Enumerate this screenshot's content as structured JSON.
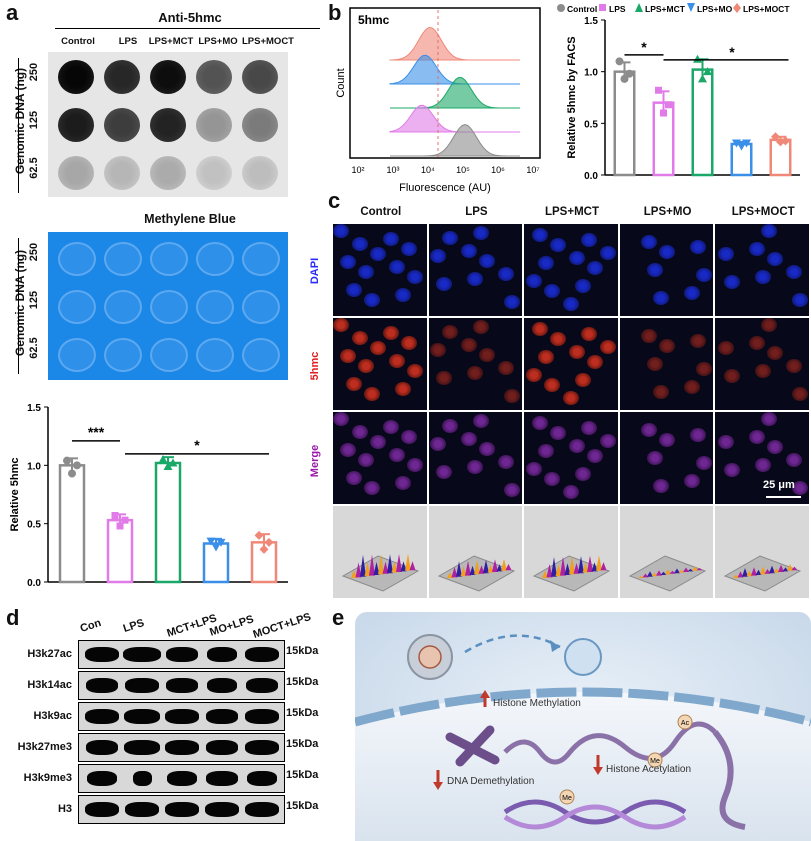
{
  "panel_labels": {
    "a": "a",
    "b": "b",
    "c": "c",
    "d": "d",
    "e": "e"
  },
  "panel_a": {
    "dot_blot_title": "Anti-5hmc",
    "columns": [
      "Control",
      "LPS",
      "LPS+MCT",
      "LPS+MO",
      "LPS+MOCT"
    ],
    "rows": [
      "250",
      "125",
      "62.5"
    ],
    "row_axis_label": "Genomic DNA (ng)",
    "stain_title": "Methylene Blue",
    "dot_intensity": [
      [
        0.95,
        0.8,
        0.92,
        0.6,
        0.65
      ],
      [
        0.85,
        0.7,
        0.82,
        0.3,
        0.42
      ],
      [
        0.22,
        0.15,
        0.2,
        0.1,
        0.12
      ]
    ]
  },
  "panel_b": {
    "histogram_title": "5hmc",
    "y_label": "Count",
    "x_label": "Fluorescence (AU)",
    "x_ticks": [
      "10²",
      "10³",
      "10⁴",
      "10⁵",
      "10⁶",
      "10⁷"
    ],
    "legend": [
      "Control",
      "LPS",
      "LPS+MCT",
      "LPS+MO",
      "LPS+MOCT"
    ]
  },
  "panel_c": {
    "columns": [
      "Control",
      "LPS",
      "LPS+MCT",
      "LPS+MO",
      "LPS+MOCT"
    ],
    "rows": [
      "DAPI",
      "5hmc",
      "Merge"
    ],
    "scale_bar": "25 μm"
  },
  "panel_d": {
    "columns": [
      "Con",
      "LPS",
      "MCT+LPS",
      "MO+LPS",
      "MOCT+LPS"
    ],
    "rows": [
      "H3k27ac",
      "H3k14ac",
      "H3k9ac",
      "H3k27me3",
      "H3k9me3",
      "H3"
    ],
    "size_label": "15kDa"
  },
  "panel_e": {
    "labels": {
      "histone_methylation": "Histone Methylation",
      "histone_acetylation": "Histone Acetylation",
      "dna_demethylation": "DNA Demethylation",
      "me": "Me",
      "ac": "Ac"
    }
  },
  "colors": {
    "Control": "#8c8c8c",
    "LPS": "#e07be8",
    "LPS+MCT": "#1aa868",
    "LPS+MO": "#3a8fe8",
    "LPS+MOCT": "#f08878"
  },
  "chart_data": [
    {
      "type": "bar",
      "panel": "a",
      "categories": [
        "Control",
        "LPS",
        "LPS+MCT",
        "LPS+MO",
        "LPS+MOCT"
      ],
      "values": [
        1.0,
        0.53,
        1.02,
        0.33,
        0.34
      ],
      "errors": [
        0.06,
        0.05,
        0.05,
        0.04,
        0.07
      ],
      "points": [
        [
          1.04,
          0.93,
          1.0
        ],
        [
          0.57,
          0.48,
          0.53
        ],
        [
          1.05,
          0.99,
          1.02
        ],
        [
          0.35,
          0.3,
          0.34
        ],
        [
          0.4,
          0.28,
          0.34
        ]
      ],
      "ylabel": "Relative 5hmc",
      "ylim": [
        0,
        1.5
      ],
      "yticks": [
        "0.0",
        "0.5",
        "1.0",
        "1.5"
      ],
      "significance": [
        "***",
        "*"
      ]
    },
    {
      "type": "bar",
      "panel": "b",
      "categories": [
        "Control",
        "LPS",
        "LPS+MCT",
        "LPS+MO",
        "LPS+MOCT"
      ],
      "values": [
        1.0,
        0.7,
        1.02,
        0.3,
        0.34
      ],
      "errors": [
        0.09,
        0.11,
        0.1,
        0.02,
        0.03
      ],
      "points": [
        [
          1.1,
          0.93,
          0.98
        ],
        [
          0.82,
          0.6,
          0.68
        ],
        [
          1.12,
          0.93,
          1.0
        ],
        [
          0.31,
          0.28,
          0.31
        ],
        [
          0.37,
          0.32,
          0.33
        ]
      ],
      "ylabel": "Relative 5hmc by FACS",
      "ylim": [
        0,
        1.5
      ],
      "yticks": [
        "0.0",
        "0.5",
        "1.0",
        "1.5"
      ],
      "legend": [
        "Control",
        "LPS",
        "LPS+MCT",
        "LPS+MO",
        "LPS+MOCT"
      ],
      "significance": [
        "*",
        "*"
      ]
    }
  ]
}
